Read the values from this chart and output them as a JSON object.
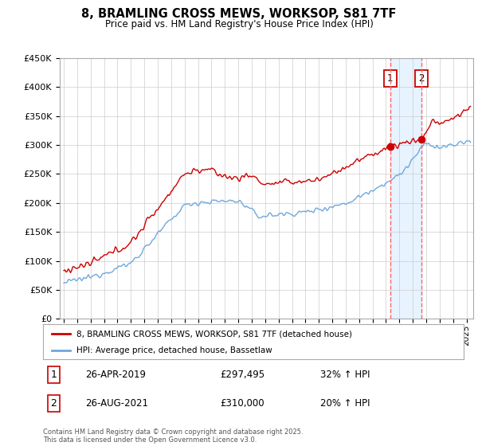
{
  "title": "8, BRAMLING CROSS MEWS, WORKSOP, S81 7TF",
  "subtitle": "Price paid vs. HM Land Registry's House Price Index (HPI)",
  "ylim": [
    0,
    450000
  ],
  "yticks": [
    0,
    50000,
    100000,
    150000,
    200000,
    250000,
    300000,
    350000,
    400000,
    450000
  ],
  "xlim_start": 1995.0,
  "xlim_end": 2025.5,
  "hpi_color": "#6fa8dc",
  "price_color": "#cc0000",
  "marker1_year": 2019.32,
  "marker2_year": 2021.65,
  "marker1_price": 297495,
  "marker2_price": 310000,
  "legend_label_price": "8, BRAMLING CROSS MEWS, WORKSOP, S81 7TF (detached house)",
  "legend_label_hpi": "HPI: Average price, detached house, Bassetlaw",
  "footnote": "Contains HM Land Registry data © Crown copyright and database right 2025.\nThis data is licensed under the Open Government Licence v3.0.",
  "background_color": "#ffffff",
  "grid_color": "#cccccc",
  "shade_color": "#ddeeff",
  "dashed_color": "#ff6666",
  "box_edge_color": "#cc0000"
}
